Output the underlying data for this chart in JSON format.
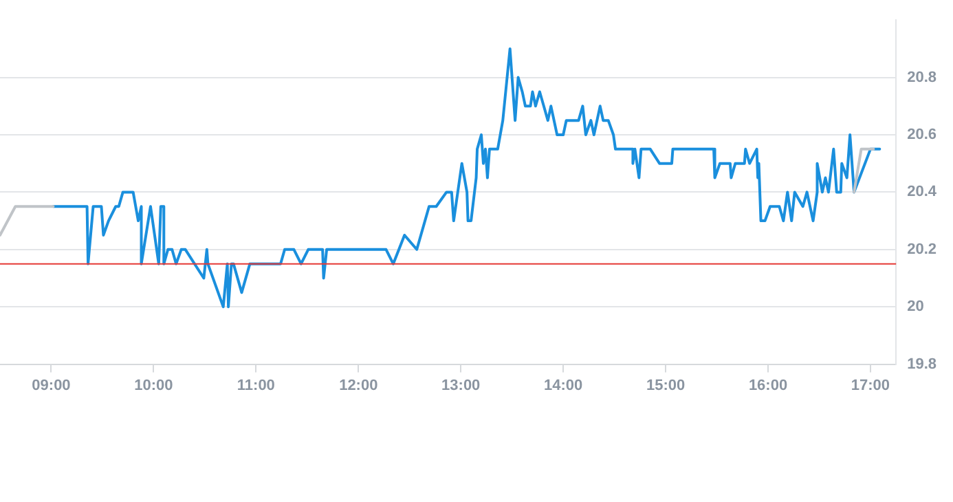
{
  "chart_data": {
    "type": "line",
    "xlim": [
      8.5,
      17.25
    ],
    "ylim": [
      19.8,
      21.0
    ],
    "xticks": [
      {
        "value": 9,
        "label": "09:00"
      },
      {
        "value": 10,
        "label": "10:00"
      },
      {
        "value": 11,
        "label": "11:00"
      },
      {
        "value": 12,
        "label": "12:00"
      },
      {
        "value": 13,
        "label": "13:00"
      },
      {
        "value": 14,
        "label": "14:00"
      },
      {
        "value": 15,
        "label": "15:00"
      },
      {
        "value": 16,
        "label": "16:00"
      },
      {
        "value": 17,
        "label": "17:00"
      }
    ],
    "yticks": [
      19.8,
      20,
      20.2,
      20.4,
      20.6,
      20.8
    ],
    "grid": "y",
    "legend": false,
    "marker": "none",
    "line_style": "solid",
    "ref_lines": [
      {
        "axis": "y",
        "value": 20.15,
        "color": "#e53935"
      }
    ],
    "series": [
      {
        "color": "#c0c4c8",
        "x": [
          8.5,
          8.65,
          9.02,
          12,
          16.84,
          16.91,
          17.03
        ],
        "values": [
          20.25,
          20.35,
          20.35,
          null,
          20.4,
          20.55,
          20.55
        ]
      },
      {
        "color": "#1a8fdd",
        "x": [
          9.02,
          9.35,
          9.36,
          9.41,
          9.49,
          9.51,
          9.56,
          9.63,
          9.66,
          9.7,
          9.8,
          9.85,
          9.88,
          9.88,
          9.97,
          10.05,
          10.07,
          10.1,
          10.1,
          10.14,
          10.18,
          10.22,
          10.27,
          10.31,
          10.49,
          10.52,
          10.53,
          10.68,
          10.72,
          10.73,
          10.76,
          10.78,
          10.86,
          10.94,
          11.24,
          11.28,
          11.37,
          11.44,
          11.51,
          11.65,
          11.66,
          11.69,
          12.27,
          12.34,
          12.45,
          12.57,
          12.65,
          12.69,
          12.76,
          12.86,
          12.91,
          12.93,
          13.01,
          13.06,
          13.07,
          13.1,
          13.15,
          13.16,
          13.2,
          13.22,
          13.24,
          13.26,
          13.28,
          13.36,
          13.41,
          13.48,
          13.53,
          13.56,
          13.6,
          13.63,
          13.68,
          13.7,
          13.73,
          13.77,
          13.81,
          13.85,
          13.88,
          13.94,
          14.0,
          14.03,
          14.15,
          14.19,
          14.22,
          14.27,
          14.3,
          14.36,
          14.39,
          14.44,
          14.49,
          14.51,
          14.68,
          14.68,
          14.7,
          14.74,
          14.76,
          14.85,
          14.94,
          15.06,
          15.07,
          15.47,
          15.48,
          15.53,
          15.63,
          15.64,
          15.68,
          15.77,
          15.78,
          15.82,
          15.89,
          15.9,
          15.91,
          15.93,
          15.97,
          16.02,
          16.11,
          16.15,
          16.19,
          16.23,
          16.26,
          16.34,
          16.38,
          16.44,
          16.48,
          16.48,
          16.53,
          16.56,
          16.59,
          16.64,
          16.67,
          16.71,
          16.72,
          16.77,
          16.8,
          16.84,
          17.0,
          17.09
        ],
        "values": [
          20.35,
          20.35,
          20.15,
          20.35,
          20.35,
          20.25,
          20.3,
          20.35,
          20.35,
          20.4,
          20.4,
          20.3,
          20.35,
          20.15,
          20.35,
          20.15,
          20.35,
          20.35,
          20.15,
          20.2,
          20.2,
          20.15,
          20.2,
          20.2,
          20.1,
          20.2,
          20.15,
          20.0,
          20.15,
          20.0,
          20.15,
          20.15,
          20.05,
          20.15,
          20.15,
          20.2,
          20.2,
          20.15,
          20.2,
          20.2,
          20.1,
          20.2,
          20.2,
          20.15,
          20.25,
          20.2,
          20.3,
          20.35,
          20.35,
          20.4,
          20.4,
          20.3,
          20.5,
          20.4,
          20.3,
          20.3,
          20.45,
          20.55,
          20.6,
          20.5,
          20.55,
          20.45,
          20.55,
          20.55,
          20.65,
          20.9,
          20.65,
          20.8,
          20.75,
          20.7,
          20.7,
          20.75,
          20.7,
          20.75,
          20.7,
          20.65,
          20.7,
          20.6,
          20.6,
          20.65,
          20.65,
          20.7,
          20.6,
          20.65,
          20.6,
          20.7,
          20.65,
          20.65,
          20.6,
          20.55,
          20.55,
          20.5,
          20.55,
          20.45,
          20.55,
          20.55,
          20.5,
          20.5,
          20.55,
          20.55,
          20.45,
          20.5,
          20.5,
          20.45,
          20.5,
          20.5,
          20.55,
          20.5,
          20.55,
          20.45,
          20.5,
          20.3,
          20.3,
          20.35,
          20.35,
          20.3,
          20.4,
          20.3,
          20.4,
          20.35,
          20.4,
          20.3,
          20.4,
          20.5,
          20.4,
          20.45,
          20.4,
          20.55,
          20.4,
          20.4,
          20.5,
          20.45,
          20.6,
          20.4,
          20.55,
          20.55
        ]
      }
    ]
  }
}
